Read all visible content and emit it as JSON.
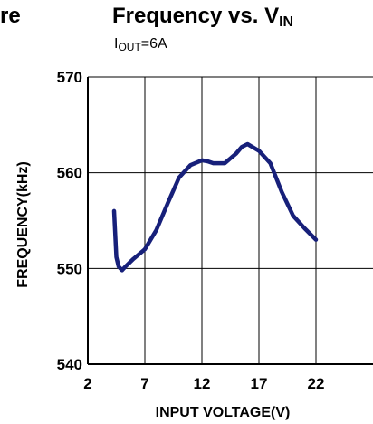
{
  "header": {
    "cut_title": "re",
    "title_main": "Frequency vs. V",
    "title_sub": "IN",
    "subtitle_main": "I",
    "subtitle_sub": "OUT",
    "subtitle_rest": "=6A"
  },
  "chart_data": {
    "type": "line",
    "xlabel": "INPUT VOLTAGE(V)",
    "ylabel": "FREQUENCY(kHz)",
    "xlim": [
      2,
      27
    ],
    "ylim": [
      540,
      570
    ],
    "x_ticks": [
      "2",
      "7",
      "12",
      "17",
      "22"
    ],
    "y_ticks": [
      "570",
      "560",
      "550",
      "540"
    ],
    "grid": true,
    "line_color": "#17207a",
    "series": [
      {
        "x": [
          4.3,
          4.5,
          4.7,
          5.0,
          5.3,
          6.0,
          7.0,
          8.0,
          9.0,
          10.0,
          11.0,
          12.0,
          12.5,
          13.0,
          14.0,
          15.0,
          15.5,
          16.0,
          17.0,
          18.0,
          19.0,
          20.0,
          21.0,
          22.0
        ],
        "y": [
          556.0,
          551.2,
          550.2,
          549.8,
          550.2,
          551.0,
          552.0,
          554.0,
          556.8,
          559.5,
          560.8,
          561.3,
          561.2,
          561.0,
          561.0,
          562.0,
          562.7,
          563.0,
          562.3,
          561.0,
          558.0,
          555.5,
          554.2,
          553.0
        ]
      }
    ]
  }
}
